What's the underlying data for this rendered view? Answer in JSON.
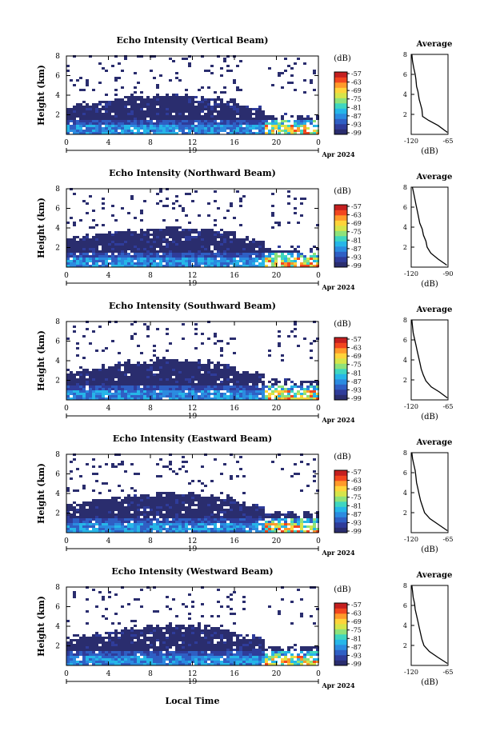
{
  "figure": {
    "time_label": "Local Time",
    "date_label": "Apr 2024",
    "day_label": "19",
    "cbar_unit": "(dB)",
    "avg_title": "Average",
    "avg_xunit": "(dB)"
  },
  "colormap": [
    "#2a2d6e",
    "#2f3c9a",
    "#2f5fc4",
    "#2b8be0",
    "#26b6e8",
    "#3fd6c0",
    "#8ee27a",
    "#d6e54a",
    "#ffd43a",
    "#ff9a2a",
    "#f2461f",
    "#c41f1f"
  ],
  "chart_data": [
    {
      "type": "heatmap",
      "title": "Echo Intensity (Vertical Beam)",
      "ylabel": "Height (km)",
      "xlabel": "Local Time",
      "xlim": [
        0,
        24
      ],
      "ylim": [
        0,
        8
      ],
      "x_ticks": [
        "0",
        "4",
        "8",
        "12",
        "16",
        "20",
        "0"
      ],
      "y_ticks": [
        "2",
        "4",
        "6",
        "8"
      ],
      "colorbar": {
        "unit": "(dB)",
        "ticks": [
          "-57",
          "-63",
          "-69",
          "-75",
          "-81",
          "-87",
          "-93",
          "-99"
        ],
        "range": [
          -99,
          -57
        ]
      },
      "profile": {
        "title": "Average",
        "xlabel": "(dB)",
        "x_ticks": [
          "-120",
          "-65"
        ],
        "y_ticks": [
          "2",
          "4",
          "6",
          "8"
        ],
        "xlim": [
          -120,
          -65
        ],
        "x": [
          -66,
          -80,
          -94,
          -103,
          -104,
          -106,
          -108,
          -110,
          -112,
          -113,
          -114,
          -116,
          -118,
          -119
        ],
        "y": [
          0.2,
          0.9,
          1.4,
          1.8,
          2.5,
          3.0,
          3.5,
          4.3,
          4.8,
          5.5,
          6.0,
          6.6,
          7.3,
          8.0
        ]
      }
    },
    {
      "type": "heatmap",
      "title": "Echo Intensity (Northward Beam)",
      "ylabel": "Height (km)",
      "xlabel": "Local Time",
      "xlim": [
        0,
        24
      ],
      "ylim": [
        0,
        8
      ],
      "x_ticks": [
        "0",
        "4",
        "8",
        "12",
        "16",
        "20",
        "0"
      ],
      "y_ticks": [
        "2",
        "4",
        "6",
        "8"
      ],
      "colorbar": {
        "unit": "(dB)",
        "ticks": [
          "-57",
          "-63",
          "-69",
          "-75",
          "-81",
          "-87",
          "-93",
          "-99"
        ],
        "range": [
          -99,
          -57
        ]
      },
      "profile": {
        "title": "Average",
        "xlabel": "(dB)",
        "x_ticks": [
          "-120",
          "-90"
        ],
        "y_ticks": [
          "2",
          "4",
          "6",
          "8"
        ],
        "xlim": [
          -120,
          -90
        ],
        "x": [
          -91,
          -98,
          -104,
          -107,
          -108,
          -110,
          -111,
          -113,
          -114,
          -115,
          -116,
          -117,
          -118,
          -119
        ],
        "y": [
          0.2,
          0.8,
          1.4,
          2.0,
          2.6,
          3.2,
          3.8,
          4.4,
          5.0,
          5.6,
          6.2,
          6.8,
          7.4,
          8.0
        ]
      }
    },
    {
      "type": "heatmap",
      "title": "Echo Intensity (Southward Beam)",
      "ylabel": "Height (km)",
      "xlabel": "Local Time",
      "xlim": [
        0,
        24
      ],
      "ylim": [
        0,
        8
      ],
      "x_ticks": [
        "0",
        "4",
        "8",
        "12",
        "16",
        "20",
        "0"
      ],
      "y_ticks": [
        "2",
        "4",
        "6",
        "8"
      ],
      "colorbar": {
        "unit": "(dB)",
        "ticks": [
          "-57",
          "-63",
          "-69",
          "-75",
          "-81",
          "-87",
          "-93",
          "-99"
        ],
        "range": [
          -99,
          -57
        ]
      },
      "profile": {
        "title": "Average",
        "xlabel": "(dB)",
        "x_ticks": [
          "-120",
          "-65"
        ],
        "y_ticks": [
          "2",
          "4",
          "6",
          "8"
        ],
        "xlim": [
          -120,
          -65
        ],
        "x": [
          -66,
          -78,
          -90,
          -98,
          -102,
          -105,
          -107,
          -109,
          -111,
          -113,
          -115,
          -117,
          -118,
          -119
        ],
        "y": [
          0.2,
          0.8,
          1.3,
          1.9,
          2.5,
          3.1,
          3.7,
          4.3,
          4.9,
          5.5,
          6.1,
          6.7,
          7.3,
          8.0
        ]
      }
    },
    {
      "type": "heatmap",
      "title": "Echo Intensity (Eastward Beam)",
      "ylabel": "Height (km)",
      "xlabel": "Local Time",
      "xlim": [
        0,
        24
      ],
      "ylim": [
        0,
        8
      ],
      "x_ticks": [
        "0",
        "4",
        "8",
        "12",
        "16",
        "20",
        "0"
      ],
      "y_ticks": [
        "2",
        "4",
        "6",
        "8"
      ],
      "colorbar": {
        "unit": "(dB)",
        "ticks": [
          "-57",
          "-63",
          "-69",
          "-75",
          "-81",
          "-87",
          "-93",
          "-99"
        ],
        "range": [
          -99,
          -57
        ]
      },
      "profile": {
        "title": "Average",
        "xlabel": "(dB)",
        "x_ticks": [
          "-120",
          "-65"
        ],
        "y_ticks": [
          "2",
          "4",
          "6",
          "8"
        ],
        "xlim": [
          -120,
          -65
        ],
        "x": [
          -66,
          -79,
          -92,
          -100,
          -103,
          -106,
          -108,
          -110,
          -112,
          -113,
          -114,
          -116,
          -118,
          -119
        ],
        "y": [
          0.2,
          0.8,
          1.4,
          2.0,
          2.6,
          3.2,
          3.8,
          4.4,
          5.0,
          5.6,
          6.2,
          6.8,
          7.4,
          8.0
        ]
      }
    },
    {
      "type": "heatmap",
      "title": "Echo Intensity (Westward Beam)",
      "ylabel": "Height (km)",
      "xlabel": "Local Time",
      "xlim": [
        0,
        24
      ],
      "ylim": [
        0,
        8
      ],
      "x_ticks": [
        "0",
        "4",
        "8",
        "12",
        "16",
        "20",
        "0"
      ],
      "y_ticks": [
        "2",
        "4",
        "6",
        "8"
      ],
      "colorbar": {
        "unit": "(dB)",
        "ticks": [
          "-57",
          "-63",
          "-69",
          "-75",
          "-81",
          "-87",
          "-93",
          "-99"
        ],
        "range": [
          -99,
          -57
        ]
      },
      "profile": {
        "title": "Average",
        "xlabel": "(dB)",
        "x_ticks": [
          "-120",
          "-65"
        ],
        "y_ticks": [
          "2",
          "4",
          "6",
          "8"
        ],
        "xlim": [
          -120,
          -65
        ],
        "x": [
          -66,
          -80,
          -93,
          -101,
          -104,
          -106,
          -108,
          -110,
          -112,
          -114,
          -115,
          -117,
          -118,
          -119
        ],
        "y": [
          0.2,
          0.8,
          1.4,
          2.0,
          2.6,
          3.2,
          3.8,
          4.4,
          5.0,
          5.6,
          6.2,
          6.8,
          7.4,
          8.0
        ]
      }
    }
  ]
}
